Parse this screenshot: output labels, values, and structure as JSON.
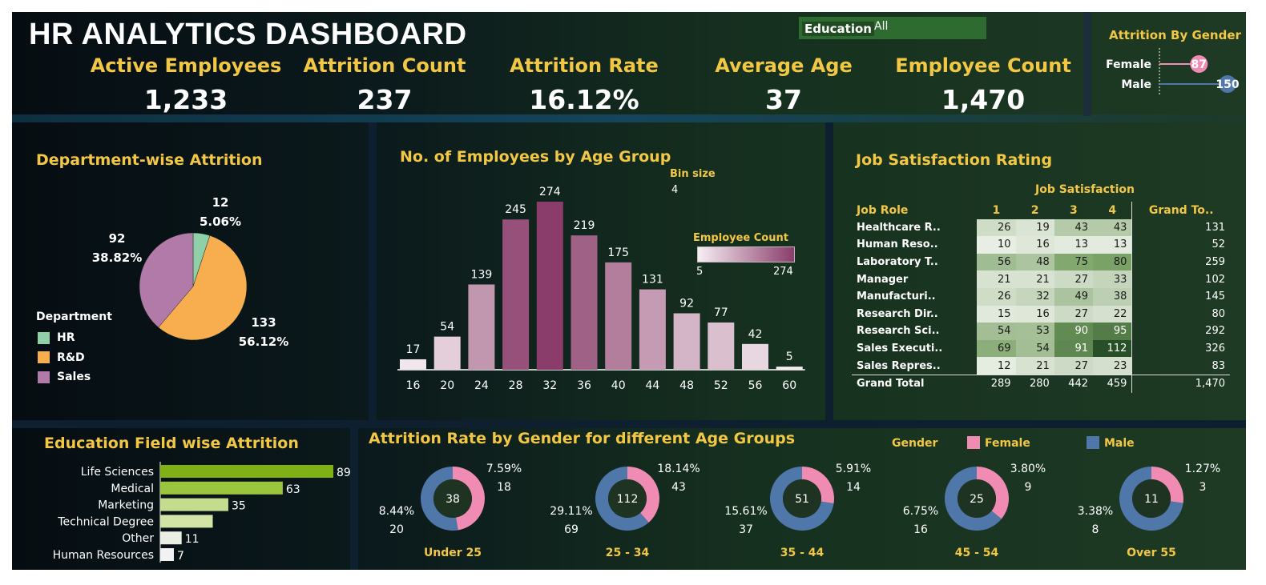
{
  "header": {
    "title": "HR ANALYTICS DASHBOARD"
  },
  "filter": {
    "label": "Education",
    "value": "All"
  },
  "kpis": [
    {
      "label": "Active Employees",
      "value": "1,233"
    },
    {
      "label": "Attrition Count",
      "value": "237"
    },
    {
      "label": "Attrition Rate",
      "value": "16.12%"
    },
    {
      "label": "Average Age",
      "value": "37"
    },
    {
      "label": "Employee Count",
      "value": "1,470"
    }
  ],
  "colors": {
    "gold": "#f2c744",
    "female": "#f08cb4",
    "male": "#4f77aa",
    "hr": "#8fd0a8",
    "rnd": "#f8ad4f",
    "sales": "#b27aa8"
  },
  "chart_data": [
    {
      "type": "bar",
      "id": "gender",
      "title": "Attrition By Gender",
      "categories": [
        "Female",
        "Male"
      ],
      "values": [
        87,
        150
      ]
    },
    {
      "type": "pie",
      "id": "department",
      "title": "Department-wise Attrition",
      "legend_title": "Department",
      "slices": [
        {
          "name": "HR",
          "value": 12,
          "pct": "5.06%"
        },
        {
          "name": "R&D",
          "value": 133,
          "pct": "56.12%"
        },
        {
          "name": "Sales",
          "value": 92,
          "pct": "38.82%"
        }
      ]
    },
    {
      "type": "bar",
      "id": "age_hist",
      "title": "No. of Employees by Age Group",
      "bin_label": "Bin size",
      "bin_value": "4",
      "color_legend": {
        "title": "Employee Count",
        "min": "5",
        "max": "274"
      },
      "categories": [
        "16",
        "20",
        "24",
        "28",
        "32",
        "36",
        "40",
        "44",
        "48",
        "52",
        "56",
        "60"
      ],
      "values": [
        17,
        54,
        139,
        245,
        274,
        219,
        175,
        131,
        92,
        77,
        42,
        5
      ]
    },
    {
      "type": "table",
      "id": "job_satisfaction",
      "title": "Job Satisfaction Rating",
      "column_group": "Job Satisfaction",
      "headers": [
        "Job Role",
        "1",
        "2",
        "3",
        "4",
        "Grand To.."
      ],
      "rows": [
        {
          "role": "Healthcare R..",
          "values": [
            26,
            19,
            43,
            43
          ],
          "total": 131
        },
        {
          "role": "Human Reso..",
          "values": [
            10,
            16,
            13,
            13
          ],
          "total": 52
        },
        {
          "role": "Laboratory T..",
          "values": [
            56,
            48,
            75,
            80
          ],
          "total": 259
        },
        {
          "role": "Manager",
          "values": [
            21,
            21,
            27,
            33
          ],
          "total": 102
        },
        {
          "role": "Manufacturi..",
          "values": [
            26,
            32,
            49,
            38
          ],
          "total": 145
        },
        {
          "role": "Research Dir..",
          "values": [
            15,
            16,
            27,
            22
          ],
          "total": 80
        },
        {
          "role": "Research Sci..",
          "values": [
            54,
            53,
            90,
            95
          ],
          "total": 292
        },
        {
          "role": "Sales Executi..",
          "values": [
            69,
            54,
            91,
            112
          ],
          "total": 326
        },
        {
          "role": "Sales Repres..",
          "values": [
            12,
            21,
            27,
            23
          ],
          "total": 83
        }
      ],
      "grand_total": {
        "label": "Grand Total",
        "values": [
          289,
          280,
          442,
          459
        ],
        "total": "1,470"
      }
    },
    {
      "type": "bar",
      "id": "education_field",
      "title": "Education Field wise Attrition",
      "categories": [
        "Life Sciences",
        "Medical",
        "Marketing",
        "Technical Degree",
        "Other",
        "Human Resources"
      ],
      "values": [
        89,
        63,
        35,
        27,
        11,
        7
      ],
      "value_labels": [
        "89",
        "63",
        "35",
        "",
        "11",
        "7"
      ]
    },
    {
      "type": "pie",
      "id": "gender_age",
      "title": "Attrition  Rate by Gender for different Age Groups",
      "legend_title": "Gender",
      "legend": [
        "Female",
        "Male"
      ],
      "groups": [
        {
          "name": "Under 25",
          "total": 38,
          "female": {
            "pct": "7.59%",
            "count": 18
          },
          "male": {
            "pct": "8.44%",
            "count": 20
          }
        },
        {
          "name": "25 - 34",
          "total": 112,
          "female": {
            "pct": "18.14%",
            "count": 43
          },
          "male": {
            "pct": "29.11%",
            "count": 69
          }
        },
        {
          "name": "35 - 44",
          "total": 51,
          "female": {
            "pct": "5.91%",
            "count": 14
          },
          "male": {
            "pct": "15.61%",
            "count": 37
          }
        },
        {
          "name": "45 - 54",
          "total": 25,
          "female": {
            "pct": "3.80%",
            "count": 9
          },
          "male": {
            "pct": "6.75%",
            "count": 16
          }
        },
        {
          "name": "Over 55",
          "total": 11,
          "female": {
            "pct": "1.27%",
            "count": 3
          },
          "male": {
            "pct": "3.38%",
            "count": 8
          }
        }
      ]
    }
  ]
}
